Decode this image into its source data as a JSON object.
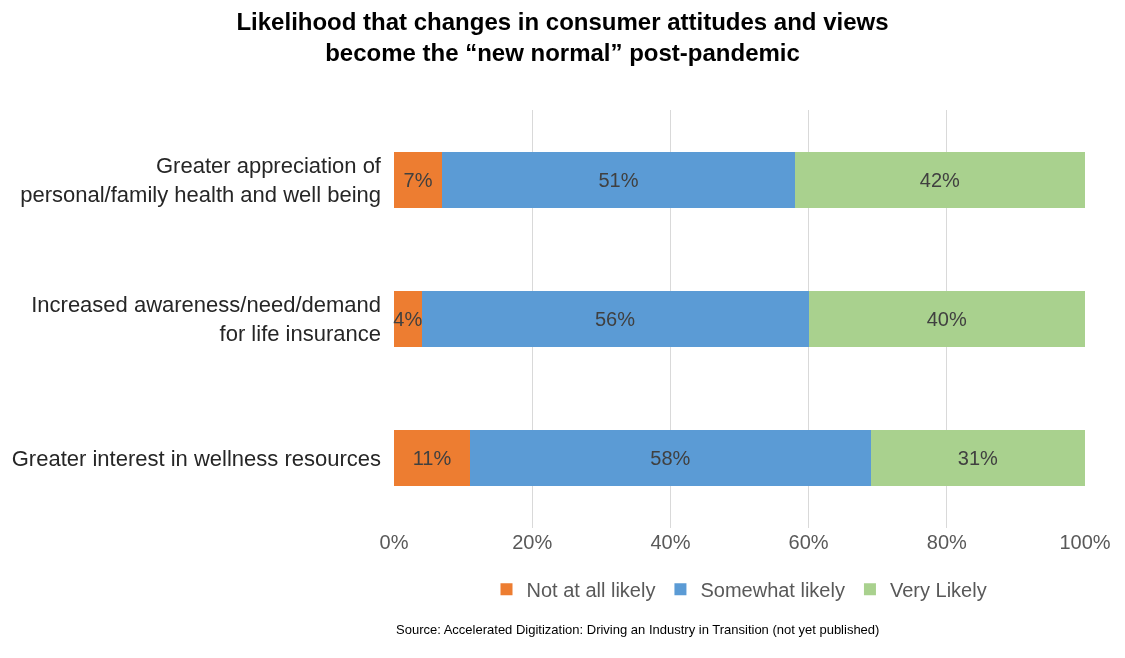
{
  "chart_data": {
    "type": "bar",
    "orientation": "horizontal",
    "stacked": true,
    "title": "Likelihood that changes in consumer attitudes and views\nbecome the “new normal” post-pandemic",
    "categories": [
      "Greater appreciation of\npersonal/family health and well being",
      "Increased awareness/need/demand\nfor life insurance",
      "Greater interest in wellness resources"
    ],
    "series": [
      {
        "name": "Not at all likely",
        "color": "#ed7d31",
        "values": [
          7,
          4,
          11
        ],
        "value_labels": [
          "7%",
          "4%",
          "11%"
        ]
      },
      {
        "name": "Somewhat likely",
        "color": "#5b9bd5",
        "values": [
          51,
          56,
          58
        ],
        "value_labels": [
          "51%",
          "56%",
          "58%"
        ]
      },
      {
        "name": "Very Likely",
        "color": "#a9d18e",
        "values": [
          42,
          40,
          31
        ],
        "value_labels": [
          "42%",
          "40%",
          "31%"
        ]
      }
    ],
    "xlim": [
      0,
      100
    ],
    "xticks": [
      {
        "value": 0,
        "label": "0%"
      },
      {
        "value": 20,
        "label": "20%"
      },
      {
        "value": 40,
        "label": "40%"
      },
      {
        "value": 60,
        "label": "60%"
      },
      {
        "value": 80,
        "label": "80%"
      },
      {
        "value": 100,
        "label": "100%"
      }
    ],
    "grid": "x",
    "legend": "bottom",
    "annotations": [
      "Source: Accelerated Digitization: Driving an Industry in Transition (not yet published)"
    ]
  }
}
